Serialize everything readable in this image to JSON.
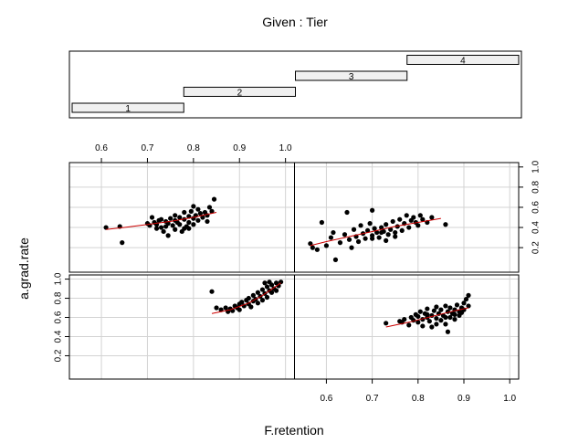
{
  "chart_data": {
    "type": "scatter",
    "title": "Given : Tier",
    "xlabel": "F.retention",
    "ylabel": "a.grad.rate",
    "xlim": [
      0.55,
      1.0
    ],
    "ylim": [
      0.0,
      1.0
    ],
    "x_ticks": [
      "0.6",
      "0.7",
      "0.8",
      "0.9",
      "1.0"
    ],
    "y_ticks": [
      "0.2",
      "0.4",
      "0.6",
      "0.8",
      "1.0"
    ],
    "grid": true,
    "colors": {
      "points": "#000000",
      "smooth": "#cc0000",
      "grid": "#d3d3d3",
      "shingle": "#f0f0f0"
    },
    "given": {
      "name": "Tier",
      "range": [
        0.5,
        4.5
      ],
      "levels": [
        {
          "label": "1",
          "from": 0.5,
          "to": 1.5
        },
        {
          "label": "2",
          "from": 1.5,
          "to": 2.5
        },
        {
          "label": "3",
          "from": 2.5,
          "to": 3.5
        },
        {
          "label": "4",
          "from": 3.5,
          "to": 4.5
        }
      ]
    },
    "panels": [
      {
        "level": "1",
        "points": [
          [
            0.61,
            0.4
          ],
          [
            0.64,
            0.41
          ],
          [
            0.645,
            0.25
          ],
          [
            0.7,
            0.44
          ],
          [
            0.705,
            0.42
          ],
          [
            0.71,
            0.5
          ],
          [
            0.715,
            0.45
          ],
          [
            0.72,
            0.43
          ],
          [
            0.725,
            0.47
          ],
          [
            0.73,
            0.4
          ],
          [
            0.73,
            0.48
          ],
          [
            0.735,
            0.36
          ],
          [
            0.74,
            0.46
          ],
          [
            0.745,
            0.44
          ],
          [
            0.745,
            0.32
          ],
          [
            0.75,
            0.49
          ],
          [
            0.755,
            0.42
          ],
          [
            0.76,
            0.38
          ],
          [
            0.76,
            0.52
          ],
          [
            0.765,
            0.45
          ],
          [
            0.77,
            0.5
          ],
          [
            0.77,
            0.43
          ],
          [
            0.775,
            0.36
          ],
          [
            0.78,
            0.55
          ],
          [
            0.78,
            0.48
          ],
          [
            0.785,
            0.41
          ],
          [
            0.79,
            0.51
          ],
          [
            0.79,
            0.45
          ],
          [
            0.795,
            0.56
          ],
          [
            0.8,
            0.49
          ],
          [
            0.8,
            0.43
          ],
          [
            0.805,
            0.52
          ],
          [
            0.81,
            0.58
          ],
          [
            0.81,
            0.47
          ],
          [
            0.815,
            0.54
          ],
          [
            0.82,
            0.5
          ],
          [
            0.825,
            0.55
          ],
          [
            0.83,
            0.52
          ],
          [
            0.835,
            0.6
          ],
          [
            0.84,
            0.56
          ],
          [
            0.845,
            0.68
          ],
          [
            0.8,
            0.61
          ],
          [
            0.76,
            0.47
          ],
          [
            0.74,
            0.41
          ],
          [
            0.72,
            0.39
          ],
          [
            0.78,
            0.39
          ],
          [
            0.83,
            0.46
          ],
          [
            0.79,
            0.39
          ]
        ],
        "smooth": [
          [
            0.61,
            0.38
          ],
          [
            0.65,
            0.4
          ],
          [
            0.7,
            0.43
          ],
          [
            0.75,
            0.46
          ],
          [
            0.8,
            0.5
          ],
          [
            0.85,
            0.55
          ]
        ]
      },
      {
        "level": "2",
        "points": [
          [
            0.84,
            0.87
          ],
          [
            0.85,
            0.7
          ],
          [
            0.86,
            0.68
          ],
          [
            0.87,
            0.7
          ],
          [
            0.875,
            0.66
          ],
          [
            0.88,
            0.69
          ],
          [
            0.885,
            0.67
          ],
          [
            0.89,
            0.72
          ],
          [
            0.895,
            0.7
          ],
          [
            0.9,
            0.74
          ],
          [
            0.9,
            0.68
          ],
          [
            0.905,
            0.76
          ],
          [
            0.91,
            0.72
          ],
          [
            0.915,
            0.78
          ],
          [
            0.92,
            0.74
          ],
          [
            0.92,
            0.8
          ],
          [
            0.925,
            0.71
          ],
          [
            0.93,
            0.77
          ],
          [
            0.93,
            0.83
          ],
          [
            0.935,
            0.79
          ],
          [
            0.94,
            0.75
          ],
          [
            0.94,
            0.86
          ],
          [
            0.945,
            0.82
          ],
          [
            0.95,
            0.78
          ],
          [
            0.95,
            0.89
          ],
          [
            0.955,
            0.85
          ],
          [
            0.96,
            0.81
          ],
          [
            0.96,
            0.92
          ],
          [
            0.965,
            0.88
          ],
          [
            0.97,
            0.94
          ],
          [
            0.97,
            0.86
          ],
          [
            0.975,
            0.9
          ],
          [
            0.98,
            0.96
          ],
          [
            0.98,
            0.88
          ],
          [
            0.985,
            0.93
          ],
          [
            0.99,
            0.97
          ],
          [
            0.955,
            0.96
          ],
          [
            0.965,
            0.97
          ]
        ],
        "smooth": [
          [
            0.84,
            0.64
          ],
          [
            0.88,
            0.68
          ],
          [
            0.92,
            0.75
          ],
          [
            0.95,
            0.83
          ],
          [
            0.99,
            0.96
          ]
        ]
      },
      {
        "level": "3",
        "points": [
          [
            0.565,
            0.24
          ],
          [
            0.57,
            0.2
          ],
          [
            0.58,
            0.18
          ],
          [
            0.59,
            0.45
          ],
          [
            0.6,
            0.22
          ],
          [
            0.61,
            0.3
          ],
          [
            0.615,
            0.35
          ],
          [
            0.62,
            0.08
          ],
          [
            0.63,
            0.25
          ],
          [
            0.64,
            0.33
          ],
          [
            0.645,
            0.55
          ],
          [
            0.65,
            0.28
          ],
          [
            0.655,
            0.2
          ],
          [
            0.66,
            0.38
          ],
          [
            0.665,
            0.31
          ],
          [
            0.67,
            0.26
          ],
          [
            0.675,
            0.42
          ],
          [
            0.68,
            0.34
          ],
          [
            0.685,
            0.29
          ],
          [
            0.69,
            0.37
          ],
          [
            0.695,
            0.44
          ],
          [
            0.7,
            0.32
          ],
          [
            0.7,
            0.57
          ],
          [
            0.705,
            0.39
          ],
          [
            0.71,
            0.35
          ],
          [
            0.715,
            0.3
          ],
          [
            0.72,
            0.4
          ],
          [
            0.725,
            0.36
          ],
          [
            0.73,
            0.43
          ],
          [
            0.735,
            0.33
          ],
          [
            0.74,
            0.38
          ],
          [
            0.745,
            0.46
          ],
          [
            0.75,
            0.35
          ],
          [
            0.755,
            0.41
          ],
          [
            0.76,
            0.48
          ],
          [
            0.765,
            0.37
          ],
          [
            0.77,
            0.44
          ],
          [
            0.775,
            0.52
          ],
          [
            0.78,
            0.4
          ],
          [
            0.785,
            0.47
          ],
          [
            0.79,
            0.5
          ],
          [
            0.795,
            0.45
          ],
          [
            0.8,
            0.42
          ],
          [
            0.805,
            0.52
          ],
          [
            0.81,
            0.48
          ],
          [
            0.82,
            0.45
          ],
          [
            0.83,
            0.5
          ],
          [
            0.86,
            0.43
          ],
          [
            0.7,
            0.29
          ],
          [
            0.72,
            0.35
          ],
          [
            0.75,
            0.31
          ],
          [
            0.73,
            0.27
          ]
        ],
        "smooth": [
          [
            0.565,
            0.22
          ],
          [
            0.6,
            0.26
          ],
          [
            0.65,
            0.31
          ],
          [
            0.7,
            0.36
          ],
          [
            0.75,
            0.41
          ],
          [
            0.8,
            0.45
          ],
          [
            0.85,
            0.49
          ]
        ]
      },
      {
        "level": "4",
        "points": [
          [
            0.73,
            0.54
          ],
          [
            0.76,
            0.56
          ],
          [
            0.765,
            0.55
          ],
          [
            0.77,
            0.58
          ],
          [
            0.78,
            0.52
          ],
          [
            0.785,
            0.6
          ],
          [
            0.79,
            0.57
          ],
          [
            0.795,
            0.63
          ],
          [
            0.8,
            0.55
          ],
          [
            0.8,
            0.61
          ],
          [
            0.805,
            0.66
          ],
          [
            0.81,
            0.58
          ],
          [
            0.81,
            0.51
          ],
          [
            0.815,
            0.64
          ],
          [
            0.82,
            0.6
          ],
          [
            0.82,
            0.69
          ],
          [
            0.825,
            0.56
          ],
          [
            0.83,
            0.62
          ],
          [
            0.83,
            0.5
          ],
          [
            0.835,
            0.67
          ],
          [
            0.84,
            0.59
          ],
          [
            0.84,
            0.71
          ],
          [
            0.845,
            0.64
          ],
          [
            0.85,
            0.57
          ],
          [
            0.85,
            0.68
          ],
          [
            0.855,
            0.62
          ],
          [
            0.86,
            0.72
          ],
          [
            0.86,
            0.53
          ],
          [
            0.865,
            0.66
          ],
          [
            0.865,
            0.45
          ],
          [
            0.87,
            0.6
          ],
          [
            0.87,
            0.7
          ],
          [
            0.875,
            0.64
          ],
          [
            0.88,
            0.68
          ],
          [
            0.88,
            0.58
          ],
          [
            0.885,
            0.73
          ],
          [
            0.89,
            0.66
          ],
          [
            0.89,
            0.62
          ],
          [
            0.895,
            0.7
          ],
          [
            0.9,
            0.75
          ],
          [
            0.9,
            0.68
          ],
          [
            0.905,
            0.79
          ],
          [
            0.91,
            0.72
          ],
          [
            0.91,
            0.83
          ],
          [
            0.84,
            0.53
          ],
          [
            0.82,
            0.63
          ],
          [
            0.86,
            0.6
          ],
          [
            0.88,
            0.63
          ],
          [
            0.895,
            0.65
          ]
        ],
        "smooth": [
          [
            0.73,
            0.5
          ],
          [
            0.78,
            0.55
          ],
          [
            0.83,
            0.61
          ],
          [
            0.88,
            0.67
          ],
          [
            0.91,
            0.7
          ]
        ]
      }
    ]
  }
}
